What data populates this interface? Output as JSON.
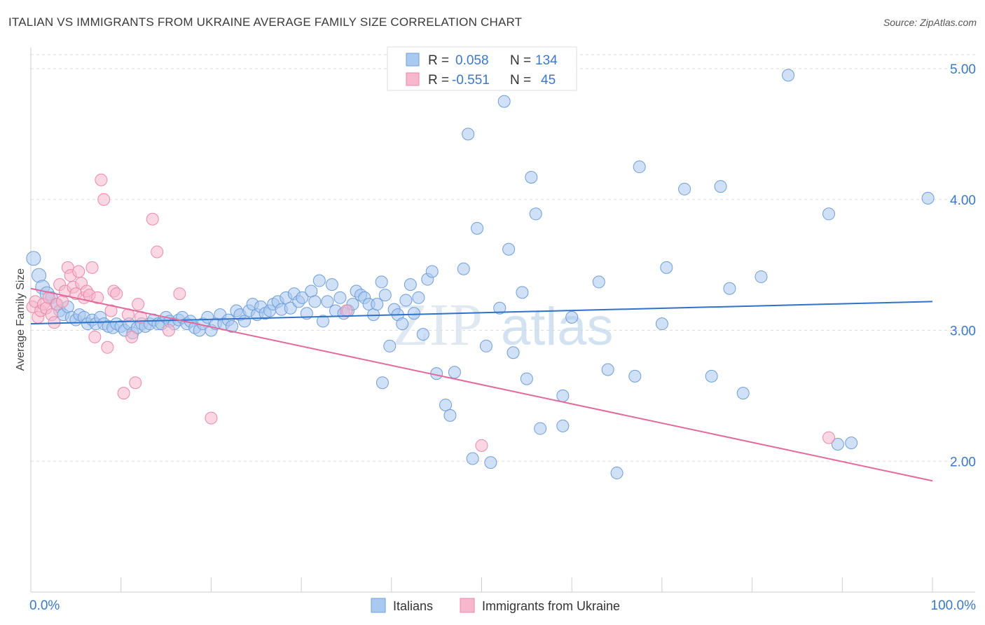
{
  "title": "ITALIAN VS IMMIGRANTS FROM UKRAINE AVERAGE FAMILY SIZE CORRELATION CHART",
  "source": "Source: ZipAtlas.com",
  "watermark": "ZIPatlas",
  "colors": {
    "italians_fill": "#a9c9f0",
    "italians_stroke": "#6f9ed8",
    "italians_line": "#2f72c9",
    "ukraine_fill": "#f7b7cc",
    "ukraine_stroke": "#e98aa9",
    "ukraine_line": "#e4699a",
    "axis_text": "#3b78c8",
    "grid": "#dddddd"
  },
  "stats_legend": {
    "r_label": "R =",
    "n_label": "N =",
    "rows": [
      {
        "r": "0.058",
        "n": "134"
      },
      {
        "r": "-0.551",
        "n": "45"
      }
    ]
  },
  "chart_data": {
    "type": "scatter",
    "title": "ITALIAN VS IMMIGRANTS FROM UKRAINE AVERAGE FAMILY SIZE CORRELATION CHART",
    "xlabel": "",
    "ylabel": "Average Family Size",
    "xlim": [
      0,
      100
    ],
    "ylim": [
      1.0,
      5.15
    ],
    "x_tick_labels": [
      "0.0%",
      "100.0%"
    ],
    "y_ticks": [
      2.0,
      3.0,
      4.0,
      5.0
    ],
    "y_tick_labels": [
      "2.00",
      "3.00",
      "4.00",
      "5.00"
    ],
    "grid": true,
    "legend_position": "bottom-center",
    "series": [
      {
        "name": "Italians",
        "r": 0.058,
        "n": 134,
        "trend": {
          "x": [
            0,
            100
          ],
          "y": [
            3.05,
            3.22
          ]
        },
        "points": [
          [
            0.3,
            3.55
          ],
          [
            0.9,
            3.42
          ],
          [
            1.3,
            3.33
          ],
          [
            1.8,
            3.28
          ],
          [
            2.3,
            3.25
          ],
          [
            2.8,
            3.2
          ],
          [
            3.2,
            3.15
          ],
          [
            3.6,
            3.12
          ],
          [
            4.1,
            3.18
          ],
          [
            4.5,
            3.1
          ],
          [
            5.0,
            3.08
          ],
          [
            5.4,
            3.12
          ],
          [
            5.9,
            3.1
          ],
          [
            6.3,
            3.05
          ],
          [
            6.8,
            3.08
          ],
          [
            7.2,
            3.05
          ],
          [
            7.7,
            3.1
          ],
          [
            8.1,
            3.05
          ],
          [
            8.6,
            3.03
          ],
          [
            9.1,
            3.02
          ],
          [
            9.5,
            3.05
          ],
          [
            10.0,
            3.03
          ],
          [
            10.4,
            3.0
          ],
          [
            10.9,
            3.05
          ],
          [
            11.3,
            2.98
          ],
          [
            11.8,
            3.02
          ],
          [
            12.3,
            3.05
          ],
          [
            12.7,
            3.03
          ],
          [
            13.2,
            3.05
          ],
          [
            13.6,
            3.08
          ],
          [
            14.1,
            3.05
          ],
          [
            14.5,
            3.05
          ],
          [
            15.0,
            3.1
          ],
          [
            15.4,
            3.07
          ],
          [
            15.9,
            3.05
          ],
          [
            16.4,
            3.08
          ],
          [
            16.8,
            3.1
          ],
          [
            17.3,
            3.05
          ],
          [
            17.7,
            3.07
          ],
          [
            18.2,
            3.02
          ],
          [
            18.7,
            3.0
          ],
          [
            19.1,
            3.05
          ],
          [
            19.6,
            3.1
          ],
          [
            20.0,
            3.0
          ],
          [
            20.5,
            3.05
          ],
          [
            21.0,
            3.12
          ],
          [
            21.4,
            3.05
          ],
          [
            21.9,
            3.08
          ],
          [
            22.3,
            3.03
          ],
          [
            22.8,
            3.15
          ],
          [
            23.2,
            3.12
          ],
          [
            23.7,
            3.07
          ],
          [
            24.2,
            3.15
          ],
          [
            24.6,
            3.2
          ],
          [
            25.1,
            3.12
          ],
          [
            25.5,
            3.18
          ],
          [
            26.0,
            3.13
          ],
          [
            26.5,
            3.15
          ],
          [
            26.9,
            3.2
          ],
          [
            27.4,
            3.22
          ],
          [
            27.8,
            3.16
          ],
          [
            28.3,
            3.25
          ],
          [
            28.8,
            3.17
          ],
          [
            29.2,
            3.28
          ],
          [
            29.7,
            3.22
          ],
          [
            30.1,
            3.25
          ],
          [
            30.6,
            3.13
          ],
          [
            31.1,
            3.3
          ],
          [
            31.5,
            3.22
          ],
          [
            32.0,
            3.38
          ],
          [
            32.4,
            3.07
          ],
          [
            32.9,
            3.22
          ],
          [
            33.4,
            3.35
          ],
          [
            33.8,
            3.15
          ],
          [
            34.3,
            3.25
          ],
          [
            34.7,
            3.13
          ],
          [
            35.2,
            3.15
          ],
          [
            35.7,
            3.2
          ],
          [
            36.1,
            3.3
          ],
          [
            36.6,
            3.27
          ],
          [
            37.0,
            3.25
          ],
          [
            37.5,
            3.2
          ],
          [
            38.0,
            3.12
          ],
          [
            38.4,
            3.2
          ],
          [
            38.9,
            3.37
          ],
          [
            39.3,
            3.27
          ],
          [
            39.8,
            2.88
          ],
          [
            40.3,
            3.16
          ],
          [
            40.7,
            3.12
          ],
          [
            41.2,
            3.05
          ],
          [
            41.6,
            3.23
          ],
          [
            42.1,
            3.35
          ],
          [
            42.5,
            3.13
          ],
          [
            43.0,
            3.25
          ],
          [
            43.5,
            2.97
          ],
          [
            44.0,
            3.39
          ],
          [
            44.5,
            3.45
          ],
          [
            45.0,
            2.67
          ],
          [
            46.0,
            2.43
          ],
          [
            46.5,
            2.35
          ],
          [
            47.0,
            2.68
          ],
          [
            48.0,
            3.47
          ],
          [
            48.5,
            4.5
          ],
          [
            49.0,
            2.02
          ],
          [
            49.5,
            3.78
          ],
          [
            50.5,
            2.88
          ],
          [
            51.0,
            1.99
          ],
          [
            52.0,
            3.17
          ],
          [
            52.5,
            4.75
          ],
          [
            53.0,
            3.62
          ],
          [
            53.5,
            2.83
          ],
          [
            54.5,
            3.29
          ],
          [
            55.0,
            2.63
          ],
          [
            55.5,
            4.17
          ],
          [
            56.0,
            3.89
          ],
          [
            56.5,
            2.25
          ],
          [
            59.0,
            2.5
          ],
          [
            60.0,
            3.1
          ],
          [
            63.0,
            3.37
          ],
          [
            64.0,
            2.7
          ],
          [
            65.0,
            1.91
          ],
          [
            67.0,
            2.65
          ],
          [
            67.5,
            4.25
          ],
          [
            70.0,
            3.05
          ],
          [
            70.5,
            3.48
          ],
          [
            72.5,
            4.08
          ],
          [
            75.5,
            2.65
          ],
          [
            76.5,
            4.1
          ],
          [
            77.5,
            3.32
          ],
          [
            79.0,
            2.52
          ],
          [
            81.0,
            3.41
          ],
          [
            84.0,
            4.95
          ],
          [
            88.5,
            3.89
          ],
          [
            89.5,
            2.13
          ],
          [
            91.0,
            2.14
          ],
          [
            99.5,
            4.01
          ],
          [
            39.0,
            2.6
          ],
          [
            59.0,
            2.27
          ]
        ]
      },
      {
        "name": "Immigrants from Ukraine",
        "r": -0.551,
        "n": 45,
        "trend": {
          "x": [
            0,
            100
          ],
          "y": [
            3.32,
            1.85
          ]
        },
        "points": [
          [
            0.2,
            3.18
          ],
          [
            0.5,
            3.22
          ],
          [
            0.8,
            3.1
          ],
          [
            1.1,
            3.15
          ],
          [
            1.4,
            3.2
          ],
          [
            1.7,
            3.17
          ],
          [
            2.0,
            3.25
          ],
          [
            2.3,
            3.12
          ],
          [
            2.6,
            3.06
          ],
          [
            2.9,
            3.2
          ],
          [
            3.2,
            3.35
          ],
          [
            3.5,
            3.22
          ],
          [
            3.8,
            3.3
          ],
          [
            4.1,
            3.48
          ],
          [
            4.4,
            3.42
          ],
          [
            4.7,
            3.33
          ],
          [
            5.0,
            3.28
          ],
          [
            5.3,
            3.45
          ],
          [
            5.6,
            3.36
          ],
          [
            5.9,
            3.25
          ],
          [
            6.2,
            3.3
          ],
          [
            6.5,
            3.27
          ],
          [
            6.8,
            3.48
          ],
          [
            7.1,
            2.95
          ],
          [
            7.4,
            3.25
          ],
          [
            7.8,
            4.15
          ],
          [
            8.1,
            4.0
          ],
          [
            8.5,
            2.87
          ],
          [
            8.9,
            3.15
          ],
          [
            9.2,
            3.3
          ],
          [
            9.5,
            3.28
          ],
          [
            10.3,
            2.52
          ],
          [
            10.8,
            3.12
          ],
          [
            11.2,
            2.95
          ],
          [
            11.6,
            2.6
          ],
          [
            11.9,
            3.2
          ],
          [
            12.2,
            3.1
          ],
          [
            13.5,
            3.85
          ],
          [
            14.0,
            3.6
          ],
          [
            15.3,
            3.0
          ],
          [
            16.5,
            3.28
          ],
          [
            20.0,
            2.33
          ],
          [
            35.0,
            3.15
          ],
          [
            50.0,
            2.12
          ],
          [
            88.5,
            2.18
          ]
        ]
      }
    ]
  },
  "legend": {
    "items": [
      "Italians",
      "Immigrants from Ukraine"
    ]
  }
}
